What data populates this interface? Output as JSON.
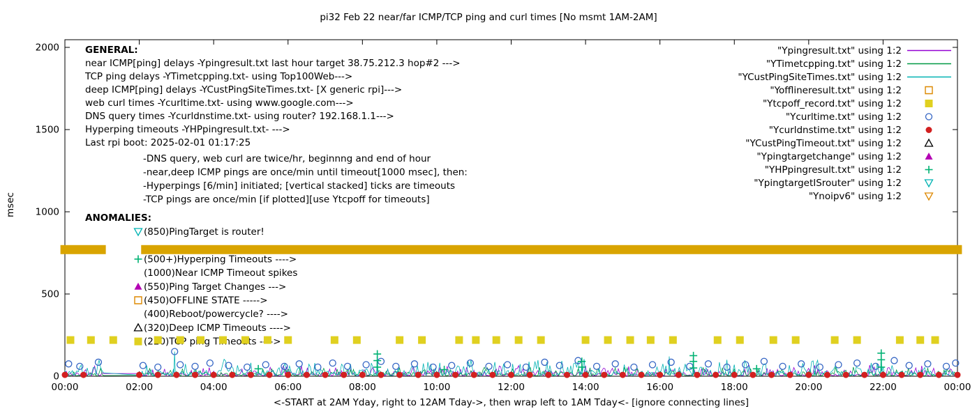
{
  "chart_data": {
    "type": "line",
    "title": "pi32 Feb 22  near/far ICMP/TCP ping and curl times [No msmt 1AM-2AM]",
    "xlabel": "<-START at 2AM Yday, right to 12AM Tday->, then wrap left to 1AM Tday<- [ignore connecting lines]",
    "ylabel": "msec",
    "ylim": [
      0,
      2000
    ],
    "x_hours_range": [
      0,
      24
    ],
    "grid": "off",
    "legend_position": "top-right-inside",
    "x_ticks": [
      "00:00",
      "02:00",
      "04:00",
      "06:00",
      "08:00",
      "10:00",
      "12:00",
      "14:00",
      "16:00",
      "18:00",
      "20:00",
      "22:00",
      "00:00"
    ],
    "y_ticks": [
      0,
      500,
      1000,
      1500,
      2000
    ],
    "legend": [
      {
        "label": "\"Ypingresult.txt\" using 1:2",
        "marker": "line",
        "color": "#9400d3"
      },
      {
        "label": "\"YTimetcpping.txt\" using 1:2",
        "marker": "line",
        "color": "#009944"
      },
      {
        "label": "\"YCustPingSiteTimes.txt\" using 1:2",
        "marker": "line",
        "color": "#00b2b2"
      },
      {
        "label": "\"Yofflineresult.txt\" using 1:2",
        "marker": "square-open",
        "color": "#dd8800"
      },
      {
        "label": "\"Ytcpoff_record.txt\" using 1:2",
        "marker": "square-filled",
        "color": "#e0d020"
      },
      {
        "label": "\"Ycurltime.txt\" using 1:2",
        "marker": "circle-open",
        "color": "#3465c4"
      },
      {
        "label": "\"Ycurldnstime.txt\" using 1:2",
        "marker": "circle-filled",
        "color": "#d22020"
      },
      {
        "label": "\"YCustPingTimeout.txt\" using 1:2",
        "marker": "triangle-up-open",
        "color": "#000000"
      },
      {
        "label": "\"Ypingtargetchange\" using 1:2",
        "marker": "triangle-up-filled",
        "color": "#b400b4"
      },
      {
        "label": "\"YHPpingresult.txt\" using 1:2",
        "marker": "plus",
        "color": "#00b273"
      },
      {
        "label": "\"YpingtargetISrouter\" using 1:2",
        "marker": "triangle-down-open",
        "color": "#00b2b2"
      },
      {
        "label": "\"Ynoipv6\" using 1:2",
        "marker": "triangle-down-open",
        "color": "#dd8800"
      }
    ],
    "annotations": {
      "general_title": "GENERAL:",
      "general_lines": [
        "near ICMP[ping] delays -Ypingresult.txt last hour target 38.75.212.3 hop#2 --->",
        "TCP ping delays -YTimetcpping.txt- using Top100Web--->",
        "deep ICMP[ping] delays -YCustPingSiteTimes.txt- [X generic rpi]--->",
        "web curl times -Ycurltime.txt- using www.google.com--->",
        "DNS query times -Ycurldnstime.txt- using router? 192.168.1.1--->",
        "Hyperping timeouts -YHPpingresult.txt- --->",
        "Last rpi boot: 2025-02-01 01:17:25"
      ],
      "general_notes": [
        "-DNS query, web curl are twice/hr, beginnng and end of hour",
        "-near,deep ICMP pings are once/min until timeout[1000 msec], then:",
        " -Hyperpings [6/min] initiated; [vertical stacked] ticks are timeouts",
        "-TCP pings are once/min [if plotted][use Ytcpoff for timeouts]"
      ],
      "anomalies_title": "ANOMALIES:",
      "anomalies": [
        {
          "marker": "triangle-down-open",
          "color": "#00b2b2",
          "label": "(850)PingTarget is router!"
        },
        {
          "marker": "none",
          "color": "",
          "label": ""
        },
        {
          "marker": "plus",
          "color": "#00b273",
          "label": "(500+)Hyperping Timeouts ---->"
        },
        {
          "marker": "none",
          "color": "",
          "label": "(1000)Near ICMP Timeout spikes"
        },
        {
          "marker": "triangle-up-filled",
          "color": "#b400b4",
          "label": "(550)Ping Target Changes --->"
        },
        {
          "marker": "square-open",
          "color": "#dd8800",
          "label": "(450)OFFLINE STATE ----->"
        },
        {
          "marker": "none",
          "color": "",
          "label": "(400)Reboot/powercycle? ---->"
        },
        {
          "marker": "triangle-up-open",
          "color": "#000000",
          "label": "(320)Deep ICMP Timeouts ---->"
        },
        {
          "marker": "square-filled",
          "color": "#e0d020",
          "label": "(220)TCP ping Timeouts ---->"
        }
      ]
    },
    "series": [
      {
        "name": "Ypingresult near ICMP ping",
        "type": "noisy-line",
        "color": "#9400d3",
        "baseline": 2,
        "amplitude": 55,
        "seed": 11,
        "gap": [
          1.05,
          2.02
        ],
        "spikes": []
      },
      {
        "name": "YTimetcpping TCP ping",
        "type": "noisy-line",
        "color": "#009944",
        "baseline": 2,
        "amplitude": 45,
        "seed": 22,
        "gap": [
          1.05,
          2.02
        ],
        "spikes": []
      },
      {
        "name": "YCustPingSiteTimes deep ICMP ping",
        "type": "noisy-line",
        "color": "#00b2b2",
        "baseline": 3,
        "amplitude": 85,
        "seed": 33,
        "gap": [
          1.05,
          2.02
        ],
        "spikes": [
          [
            2.95,
            150
          ],
          [
            8.4,
            155
          ],
          [
            13.9,
            100
          ],
          [
            16.25,
            120
          ],
          [
            16.9,
            130
          ],
          [
            21.95,
            150
          ]
        ]
      },
      {
        "name": "Ytcpoff_record TCP ping timeouts",
        "type": "scatter",
        "marker": "square-filled",
        "color": "#e0d020",
        "y": 220,
        "x": [
          0.15,
          0.7,
          1.3,
          2.5,
          3.1,
          3.65,
          4.25,
          4.85,
          5.45,
          6.0,
          7.25,
          7.85,
          9.0,
          9.6,
          10.6,
          11.05,
          11.6,
          12.2,
          12.8,
          14.0,
          14.6,
          15.2,
          15.75,
          16.35,
          17.55,
          18.15,
          19.05,
          19.65,
          20.7,
          21.3,
          22.45,
          23.0,
          23.4
        ]
      },
      {
        "name": "Ycurltime web curl",
        "type": "scatter",
        "marker": "circle-open",
        "color": "#3465c4",
        "points": [
          [
            0.1,
            75
          ],
          [
            0.4,
            60
          ],
          [
            0.9,
            85
          ],
          [
            2.1,
            65
          ],
          [
            2.5,
            55
          ],
          [
            2.95,
            150
          ],
          [
            3.1,
            70
          ],
          [
            3.5,
            60
          ],
          [
            3.9,
            80
          ],
          [
            4.4,
            65
          ],
          [
            4.9,
            55
          ],
          [
            5.4,
            70
          ],
          [
            5.9,
            60
          ],
          [
            6.3,
            75
          ],
          [
            6.8,
            55
          ],
          [
            7.2,
            80
          ],
          [
            7.6,
            60
          ],
          [
            8.1,
            70
          ],
          [
            8.5,
            90
          ],
          [
            8.9,
            60
          ],
          [
            9.4,
            75
          ],
          [
            9.9,
            55
          ],
          [
            10.4,
            65
          ],
          [
            10.9,
            80
          ],
          [
            11.4,
            60
          ],
          [
            11.9,
            70
          ],
          [
            12.4,
            55
          ],
          [
            12.9,
            85
          ],
          [
            13.3,
            65
          ],
          [
            13.8,
            95
          ],
          [
            14.3,
            60
          ],
          [
            14.8,
            75
          ],
          [
            15.3,
            55
          ],
          [
            15.8,
            70
          ],
          [
            16.3,
            85
          ],
          [
            16.8,
            60
          ],
          [
            17.3,
            75
          ],
          [
            17.8,
            55
          ],
          [
            18.3,
            70
          ],
          [
            18.8,
            90
          ],
          [
            19.3,
            60
          ],
          [
            19.8,
            75
          ],
          [
            20.3,
            55
          ],
          [
            20.8,
            70
          ],
          [
            21.3,
            80
          ],
          [
            21.8,
            60
          ],
          [
            22.3,
            95
          ],
          [
            22.7,
            65
          ],
          [
            23.2,
            75
          ],
          [
            23.7,
            60
          ],
          [
            23.95,
            80
          ]
        ]
      },
      {
        "name": "Ycurldnstime DNS query",
        "type": "scatter",
        "marker": "circle-filled",
        "color": "#d22020",
        "y": 8,
        "x": [
          0,
          0.5,
          2,
          2.5,
          3,
          3.5,
          4,
          4.5,
          5,
          5.5,
          6,
          6.5,
          7,
          7.5,
          8,
          8.5,
          9,
          9.5,
          10,
          10.5,
          11,
          11.5,
          12,
          12.5,
          13,
          13.5,
          14,
          14.5,
          15,
          15.5,
          16,
          16.5,
          17,
          17.5,
          18,
          18.5,
          19,
          19.5,
          20,
          20.5,
          21,
          21.5,
          22,
          22.5,
          23,
          23.5,
          24
        ]
      },
      {
        "name": "YHPpingresult Hyperping timeouts",
        "type": "scatter",
        "marker": "plus",
        "color": "#00b273",
        "points": [
          [
            5.2,
            45
          ],
          [
            8.4,
            55
          ],
          [
            8.4,
            95
          ],
          [
            8.4,
            135
          ],
          [
            10.2,
            40
          ],
          [
            13.9,
            55
          ],
          [
            13.9,
            90
          ],
          [
            16.9,
            50
          ],
          [
            16.9,
            90
          ],
          [
            16.9,
            125
          ],
          [
            18.6,
            45
          ],
          [
            21.95,
            55
          ],
          [
            21.95,
            100
          ],
          [
            21.95,
            140
          ]
        ]
      },
      {
        "name": "Ynoipv6 band",
        "type": "band",
        "color": "#d9a400",
        "y": 770,
        "thickness_msec": 55,
        "segments": [
          [
            -0.12,
            1.1
          ],
          [
            2.05,
            24.12
          ]
        ]
      }
    ]
  }
}
